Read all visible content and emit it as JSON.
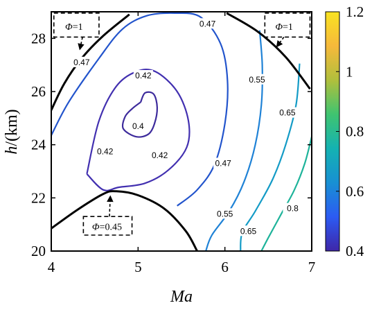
{
  "chart_data": {
    "type": "contour",
    "xlabel": "Ma",
    "ylabel_var": "h",
    "ylabel_unit": "/(km)",
    "xlim": [
      4,
      7
    ],
    "ylim": [
      20,
      29
    ],
    "xticks": [
      "4",
      "5",
      "6",
      "7"
    ],
    "yticks": [
      "20",
      "22",
      "24",
      "26",
      "28"
    ],
    "colorbar": {
      "range": [
        0.4,
        1.2
      ],
      "ticks": [
        "0.4",
        "0.6",
        "0.8",
        "1",
        "1.2"
      ],
      "colors": [
        "#3e26a8",
        "#2c5bf3",
        "#1890d3",
        "#14b2b2",
        "#3fc470",
        "#b1bf3c",
        "#f6b93b",
        "#f9e321"
      ]
    },
    "contours": [
      {
        "level": "0.4",
        "color": "#3d2b9c",
        "points": [
          [
            5.03,
            25.6
          ],
          [
            5.08,
            25.95
          ],
          [
            5.18,
            25.9
          ],
          [
            5.22,
            25.4
          ],
          [
            5.19,
            24.8
          ],
          [
            5.12,
            24.4
          ],
          [
            4.98,
            24.3
          ],
          [
            4.83,
            24.6
          ],
          [
            4.85,
            25.05
          ],
          [
            4.93,
            25.35
          ],
          [
            5.03,
            25.6
          ]
        ],
        "labels": [
          {
            "text": "0.4",
            "x": 5.0,
            "y": 24.7
          }
        ]
      },
      {
        "level": "0.42",
        "color": "#4230b0",
        "points": [
          [
            4.41,
            22.9
          ],
          [
            4.55,
            24.9
          ],
          [
            4.75,
            26.2
          ],
          [
            4.98,
            26.75
          ],
          [
            5.2,
            26.75
          ],
          [
            5.45,
            26.0
          ],
          [
            5.58,
            24.9
          ],
          [
            5.56,
            23.9
          ],
          [
            5.35,
            23.05
          ],
          [
            5.08,
            22.55
          ],
          [
            4.78,
            22.4
          ],
          [
            4.6,
            22.3
          ],
          [
            4.41,
            22.9
          ]
        ],
        "labels": [
          {
            "text": "0.42",
            "x": 4.62,
            "y": 23.75
          },
          {
            "text": "0.42",
            "x": 5.06,
            "y": 26.6
          },
          {
            "text": "0.42",
            "x": 5.25,
            "y": 23.6
          }
        ]
      },
      {
        "level": "0.47",
        "color": "#2254cc",
        "points": [
          [
            4.0,
            24.35
          ],
          [
            4.2,
            25.6
          ],
          [
            4.55,
            27.25
          ],
          [
            4.82,
            28.35
          ],
          [
            5.1,
            28.85
          ],
          [
            5.42,
            28.95
          ],
          [
            5.72,
            28.8
          ],
          [
            5.95,
            27.8
          ],
          [
            6.03,
            26.4
          ],
          [
            6.0,
            24.8
          ],
          [
            5.88,
            23.25
          ],
          [
            5.68,
            22.3
          ],
          [
            5.45,
            21.7
          ]
        ],
        "labels": [
          {
            "text": "0.47",
            "x": 4.35,
            "y": 27.1
          },
          {
            "text": "0.47",
            "x": 5.8,
            "y": 28.55
          },
          {
            "text": "0.47",
            "x": 5.98,
            "y": 23.3
          }
        ]
      },
      {
        "level": "0.55",
        "color": "#1f82d6",
        "points": [
          [
            6.4,
            28.3
          ],
          [
            6.43,
            27.0
          ],
          [
            6.42,
            25.5
          ],
          [
            6.35,
            24.0
          ],
          [
            6.22,
            22.6
          ],
          [
            6.05,
            21.5
          ],
          [
            5.85,
            20.6
          ],
          [
            5.78,
            20.0
          ]
        ],
        "labels": [
          {
            "text": "0.55",
            "x": 6.37,
            "y": 26.45
          },
          {
            "text": "0.55",
            "x": 6.0,
            "y": 21.4
          }
        ]
      },
      {
        "level": "0.65",
        "color": "#139bc6",
        "points": [
          [
            6.86,
            27.05
          ],
          [
            6.82,
            25.5
          ],
          [
            6.7,
            24.0
          ],
          [
            6.55,
            22.7
          ],
          [
            6.35,
            21.5
          ],
          [
            6.2,
            20.7
          ],
          [
            6.18,
            20.0
          ]
        ],
        "labels": [
          {
            "text": "0.65",
            "x": 6.72,
            "y": 25.2
          },
          {
            "text": "0.65",
            "x": 6.27,
            "y": 20.75
          }
        ]
      },
      {
        "level": "0.8",
        "color": "#1eb39a",
        "points": [
          [
            7.0,
            24.3
          ],
          [
            6.92,
            23.3
          ],
          [
            6.8,
            22.3
          ],
          [
            6.65,
            21.4
          ],
          [
            6.5,
            20.5
          ],
          [
            6.42,
            20.0
          ]
        ],
        "labels": [
          {
            "text": "0.8",
            "x": 6.78,
            "y": 21.6
          }
        ]
      }
    ],
    "boundaries": [
      {
        "label": "Φ=1",
        "points": [
          [
            4.0,
            25.3
          ],
          [
            4.15,
            26.3
          ],
          [
            4.35,
            27.25
          ],
          [
            4.6,
            28.1
          ],
          [
            4.9,
            28.9
          ]
        ]
      },
      {
        "label": "Φ=1",
        "points": [
          [
            6.02,
            28.95
          ],
          [
            6.38,
            28.25
          ],
          [
            6.7,
            27.3
          ],
          [
            6.98,
            26.1
          ]
        ]
      },
      {
        "label": "Φ=0.45",
        "points": [
          [
            4.0,
            20.85
          ],
          [
            4.3,
            21.55
          ],
          [
            4.6,
            22.15
          ],
          [
            4.75,
            22.25
          ],
          [
            5.0,
            22.1
          ],
          [
            5.3,
            21.6
          ],
          [
            5.55,
            20.75
          ],
          [
            5.68,
            20.0
          ]
        ]
      }
    ],
    "annotations": [
      {
        "phi": "Φ",
        "value": "=1",
        "box": [
          4.03,
          28.05,
          4.55,
          28.95
        ],
        "text_at": [
          4.16,
          28.45
        ],
        "arrow_from": [
          4.36,
          28.05
        ],
        "arrow_to": [
          4.33,
          27.6
        ]
      },
      {
        "phi": "Φ",
        "value": "=1",
        "box": [
          6.46,
          28.05,
          6.98,
          28.95
        ],
        "text_at": [
          6.58,
          28.45
        ],
        "arrow_from": [
          6.68,
          28.05
        ],
        "arrow_to": [
          6.6,
          27.7
        ]
      },
      {
        "phi": "Φ",
        "value": "=0.45",
        "box": [
          4.37,
          20.6,
          4.93,
          21.3
        ],
        "text_at": [
          4.47,
          20.92
        ],
        "arrow_from": [
          4.67,
          21.3
        ],
        "arrow_to": [
          4.68,
          22.05
        ]
      }
    ]
  }
}
